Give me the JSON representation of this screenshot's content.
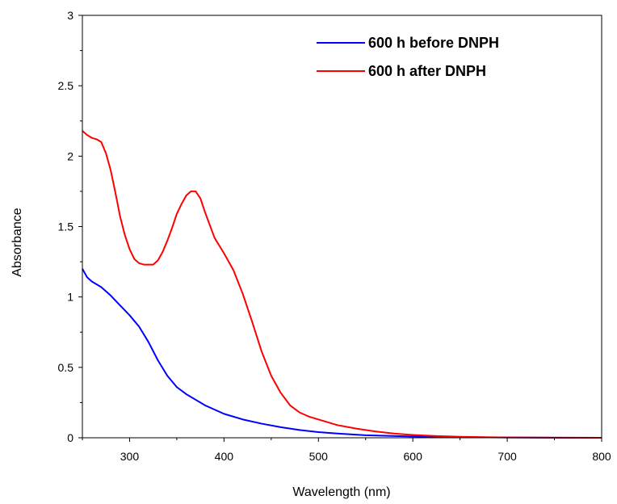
{
  "chart_data": {
    "type": "line",
    "title": "",
    "xlabel": "Wavelength (nm)",
    "ylabel": "Absorbance",
    "xlim": [
      250,
      800
    ],
    "ylim": [
      0,
      3
    ],
    "x_ticks": [
      300,
      400,
      500,
      600,
      700,
      800
    ],
    "x_tick_labels": [
      "300",
      "400",
      "500",
      "600",
      "700",
      "800"
    ],
    "y_ticks": [
      0,
      0.5,
      1,
      1.5,
      2,
      2.5,
      3
    ],
    "y_tick_labels": [
      "0",
      "0.5",
      "1",
      "1.5",
      "2",
      "2.5",
      "3"
    ],
    "grid": false,
    "legend_position": "top-right",
    "series": [
      {
        "name": "600 h before DNPH",
        "color": "#0000ff",
        "x": [
          250,
          255,
          260,
          270,
          280,
          290,
          300,
          310,
          320,
          330,
          340,
          350,
          360,
          370,
          380,
          390,
          400,
          420,
          440,
          460,
          480,
          500,
          520,
          550,
          600,
          650,
          700,
          750,
          800
        ],
        "y": [
          1.2,
          1.14,
          1.11,
          1.07,
          1.01,
          0.94,
          0.87,
          0.79,
          0.68,
          0.55,
          0.44,
          0.36,
          0.31,
          0.27,
          0.23,
          0.2,
          0.17,
          0.13,
          0.1,
          0.075,
          0.055,
          0.04,
          0.03,
          0.018,
          0.009,
          0.004,
          0.002,
          0.001,
          0.0
        ]
      },
      {
        "name": "600 h after DNPH",
        "color": "#ff0000",
        "x": [
          250,
          255,
          260,
          265,
          270,
          275,
          280,
          285,
          290,
          295,
          300,
          305,
          310,
          315,
          320,
          325,
          330,
          335,
          340,
          345,
          350,
          355,
          360,
          365,
          370,
          375,
          380,
          385,
          390,
          400,
          410,
          420,
          430,
          440,
          450,
          460,
          470,
          480,
          490,
          500,
          520,
          540,
          560,
          580,
          600,
          625,
          650,
          675,
          700,
          750,
          800
        ],
        "y": [
          2.18,
          2.15,
          2.13,
          2.12,
          2.1,
          2.02,
          1.9,
          1.74,
          1.57,
          1.44,
          1.34,
          1.27,
          1.24,
          1.23,
          1.23,
          1.23,
          1.26,
          1.32,
          1.4,
          1.49,
          1.59,
          1.66,
          1.72,
          1.75,
          1.75,
          1.7,
          1.6,
          1.51,
          1.42,
          1.31,
          1.19,
          1.02,
          0.82,
          0.61,
          0.44,
          0.32,
          0.23,
          0.18,
          0.15,
          0.13,
          0.09,
          0.065,
          0.045,
          0.03,
          0.02,
          0.012,
          0.007,
          0.004,
          0.002,
          0.001,
          0.0
        ]
      }
    ]
  }
}
